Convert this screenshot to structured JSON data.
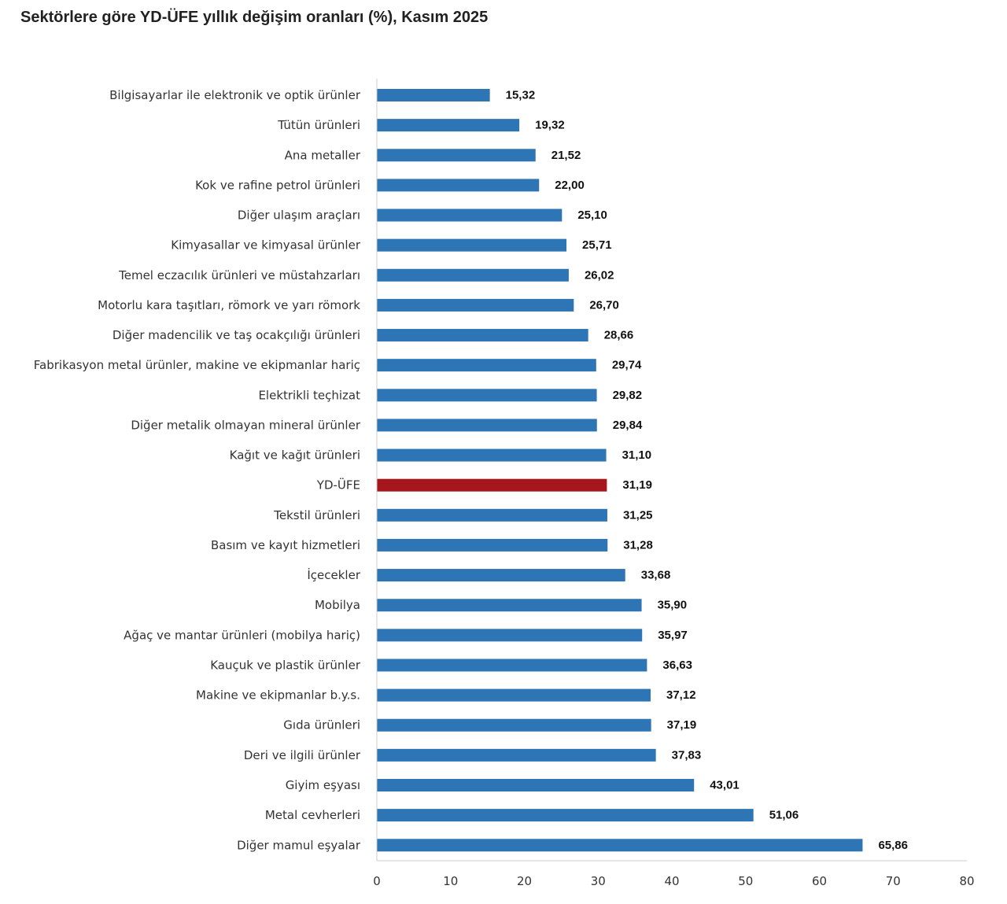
{
  "chart_data": {
    "type": "bar",
    "orientation": "horizontal",
    "title": "Sektörlere göre YD-ÜFE yıllık değişim oranları (%), Kasım 2025",
    "categories": [
      "Bilgisayarlar ile elektronik ve optik ürünler",
      "Tütün ürünleri",
      "Ana metaller",
      "Kok ve rafine petrol ürünleri",
      "Diğer ulaşım araçları",
      "Kimyasallar ve kimyasal ürünler",
      "Temel eczacılık ürünleri ve müstahzarları",
      "Motorlu kara taşıtları, römork ve yarı römork",
      "Diğer madencilik ve taş ocakçılığı ürünleri",
      "Fabrikasyon metal ürünler, makine ve ekipmanlar hariç",
      "Elektrikli teçhizat",
      "Diğer metalik olmayan mineral ürünler",
      "Kağıt ve kağıt ürünleri",
      "YD-ÜFE",
      "Tekstil ürünleri",
      "Basım ve kayıt hizmetleri",
      "İçecekler",
      "Mobilya",
      "Ağaç ve mantar ürünleri (mobilya hariç)",
      "Kauçuk ve plastik ürünler",
      "Makine ve ekipmanlar b.y.s.",
      "Gıda ürünleri",
      "Deri ve ilgili ürünler",
      "Giyim eşyası",
      "Metal cevherleri",
      "Diğer mamul eşyalar"
    ],
    "values": [
      15.32,
      19.32,
      21.52,
      22.0,
      25.1,
      25.71,
      26.02,
      26.7,
      28.66,
      29.74,
      29.82,
      29.84,
      31.1,
      31.19,
      31.25,
      31.28,
      33.68,
      35.9,
      35.97,
      36.63,
      37.12,
      37.19,
      37.83,
      43.01,
      51.06,
      65.86
    ],
    "value_labels": [
      "15,32",
      "19,32",
      "21,52",
      "22,00",
      "25,10",
      "25,71",
      "26,02",
      "26,70",
      "28,66",
      "29,74",
      "29,82",
      "29,84",
      "31,10",
      "31,19",
      "31,25",
      "31,28",
      "33,68",
      "35,90",
      "35,97",
      "36,63",
      "37,12",
      "37,19",
      "37,83",
      "43,01",
      "51,06",
      "65,86"
    ],
    "highlight_category": "YD-ÜFE",
    "xlim": [
      0,
      80
    ],
    "xticks": [
      0,
      10,
      20,
      30,
      40,
      50,
      60,
      70,
      80
    ],
    "xlabel": "",
    "ylabel": "",
    "grid": false,
    "legend": "none",
    "colors": {
      "bar": "#2e75b6",
      "highlight": "#a5171c",
      "axis": "#cccccc"
    }
  }
}
